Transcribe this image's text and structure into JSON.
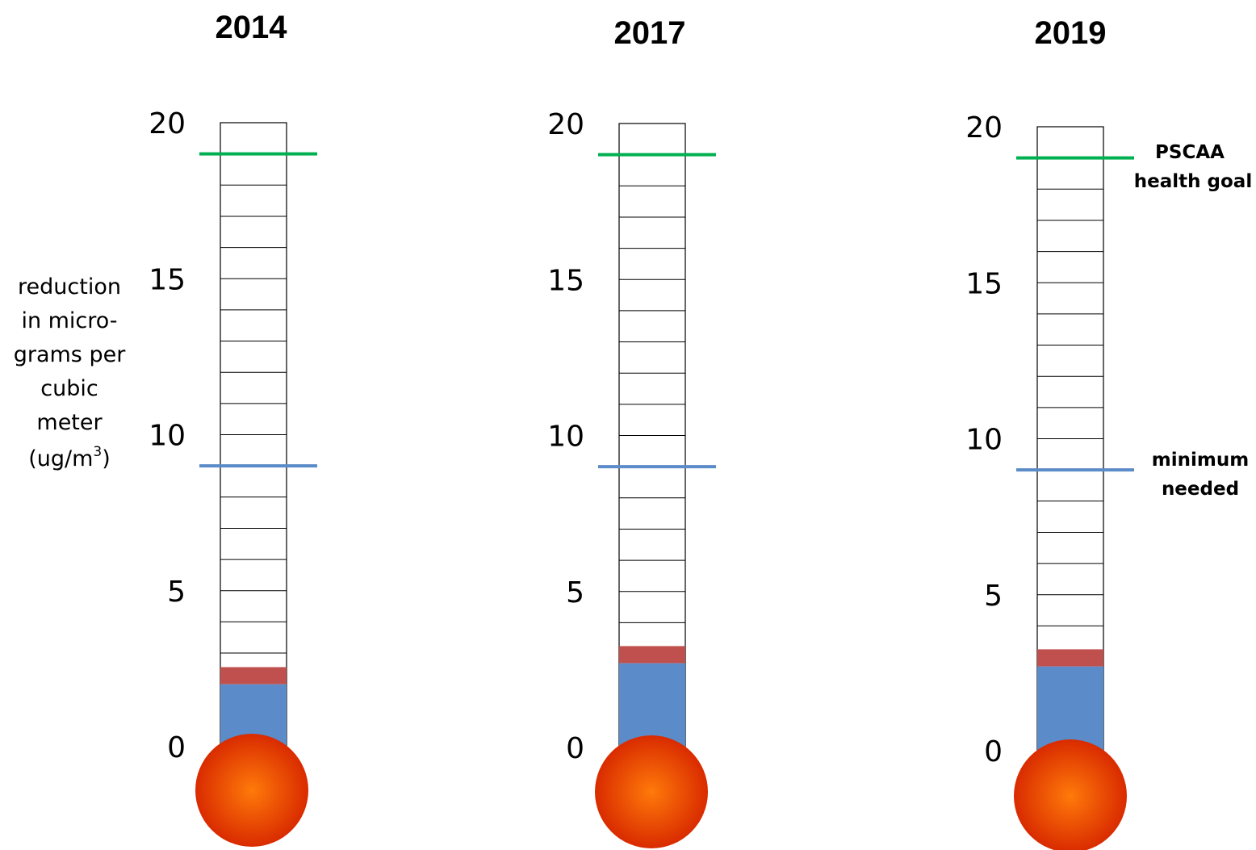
{
  "chart_data": {
    "type": "thermometer",
    "ylabel_lines": [
      "reduction",
      "in micro-",
      "grams per",
      "cubic",
      "meter"
    ],
    "ylabel_unit": {
      "prefix": "(ug/m",
      "sup": "3",
      "suffix": ")"
    },
    "ylim": [
      0,
      20
    ],
    "yticks": [
      "0",
      "5",
      "10",
      "15",
      "20"
    ],
    "colors": {
      "achieved": "#5b8bc9",
      "increment": "#c0504d",
      "health_goal": "#00b050",
      "minimum": "#5b8bc9",
      "bulb_center": "#ff7a0a",
      "bulb_edge": "#d92b00"
    },
    "reference_lines": {
      "health_goal": {
        "value": 19,
        "label_lines": [
          "PSCAA",
          "health goal"
        ]
      },
      "minimum": {
        "value": 9,
        "label_lines": [
          "minimum",
          "needed"
        ]
      }
    },
    "thermometers": [
      {
        "title": "2014",
        "achieved": 2.0,
        "increment": 0.55
      },
      {
        "title": "2017",
        "achieved": 2.7,
        "increment": 0.55
      },
      {
        "title": "2019",
        "achieved": 2.7,
        "increment": 0.55
      }
    ]
  }
}
